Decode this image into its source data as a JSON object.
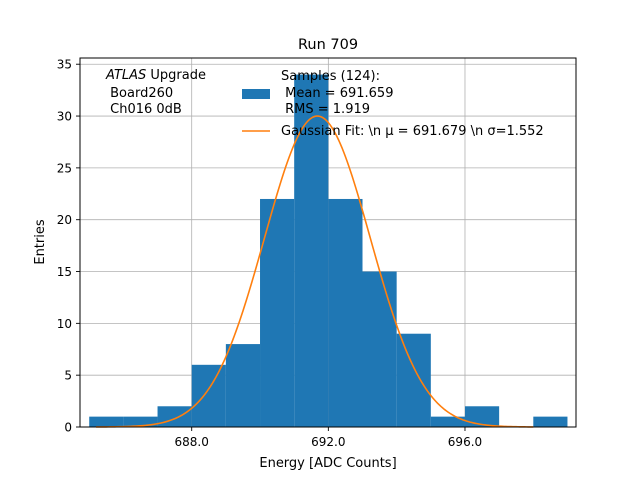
{
  "chart_data": {
    "type": "bar",
    "title": "Run 709",
    "xlabel": "Energy [ADC Counts]",
    "ylabel": "Entries",
    "xlim": [
      684.73,
      699.25
    ],
    "ylim": [
      0,
      35.6
    ],
    "xticks": [
      688.0,
      692.0,
      696.0
    ],
    "xtick_labels": [
      "688.0",
      "692.0",
      "696.0"
    ],
    "yticks": [
      0,
      5,
      10,
      15,
      20,
      25,
      30,
      35
    ],
    "ytick_labels": [
      "0",
      "5",
      "10",
      "15",
      "20",
      "25",
      "30",
      "35"
    ],
    "grid": true,
    "bin_width": 1,
    "bins": [
      {
        "left": 685,
        "count": 1
      },
      {
        "left": 686,
        "count": 1
      },
      {
        "left": 687,
        "count": 2
      },
      {
        "left": 688,
        "count": 6
      },
      {
        "left": 689,
        "count": 8
      },
      {
        "left": 690,
        "count": 22
      },
      {
        "left": 691,
        "count": 34
      },
      {
        "left": 692,
        "count": 22
      },
      {
        "left": 693,
        "count": 15
      },
      {
        "left": 694,
        "count": 9
      },
      {
        "left": 695,
        "count": 1
      },
      {
        "left": 696,
        "count": 2
      },
      {
        "left": 697,
        "count": 0
      },
      {
        "left": 698,
        "count": 1
      }
    ],
    "fit": {
      "mean": 691.679,
      "sigma": 1.552,
      "amplitude": 30
    },
    "colors": {
      "hist": "#1f77b4",
      "fit": "#ff7f0e",
      "grid": "#b0b0b0"
    },
    "annotation": {
      "italic": "ATLAS",
      "rest": " Upgrade",
      "line2": " Board260",
      "line3": " Ch016 0dB"
    },
    "legend": {
      "placement": "top",
      "hist_lines": [
        "Samples (124):",
        " Mean = 691.659",
        " RMS = 1.919"
      ],
      "fit_label": "Gaussian Fit: \\n μ = 691.679 \\n σ=1.552"
    }
  }
}
